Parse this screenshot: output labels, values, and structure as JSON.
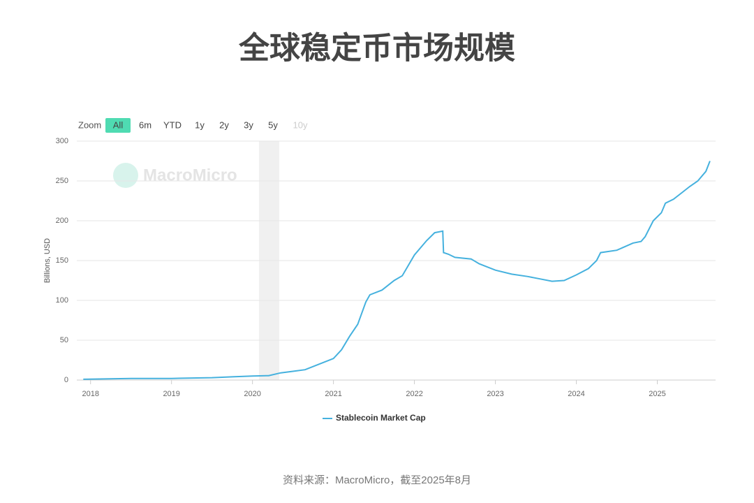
{
  "chart_data": {
    "type": "line",
    "title": "全球稳定币市场规模",
    "y_label": "Billions, USD",
    "source": "资料来源：MacroMicro，截至2025年8月",
    "watermark": "MacroMicro",
    "range_selector": {
      "label": "Zoom",
      "buttons": [
        "All",
        "6m",
        "YTD",
        "1y",
        "2y",
        "3y",
        "5y",
        "10y"
      ],
      "active": 0,
      "disabled": 7
    },
    "x": [
      2017.91,
      2018.5,
      2019.0,
      2019.5,
      2019.75,
      2020.0,
      2020.2,
      2020.35,
      2020.5,
      2020.65,
      2020.8,
      2021.0,
      2021.1,
      2021.2,
      2021.3,
      2021.4,
      2021.45,
      2021.6,
      2021.75,
      2021.85,
      2022.0,
      2022.15,
      2022.25,
      2022.35,
      2022.36,
      2022.42,
      2022.5,
      2022.7,
      2022.8,
      2023.0,
      2023.2,
      2023.4,
      2023.55,
      2023.7,
      2023.85,
      2024.0,
      2024.15,
      2024.25,
      2024.3,
      2024.5,
      2024.7,
      2024.8,
      2024.85,
      2024.95,
      2025.05,
      2025.1,
      2025.2,
      2025.3,
      2025.4,
      2025.5,
      2025.6,
      2025.65
    ],
    "series": [
      {
        "name": "Stablecoin Market Cap",
        "color": "#45b1de",
        "values": [
          1,
          2,
          2,
          3,
          4,
          5,
          5.5,
          9,
          11,
          13,
          19,
          27,
          38,
          55,
          70,
          98,
          107,
          113,
          125,
          131,
          157,
          175,
          185,
          187,
          160,
          158,
          154,
          152,
          146,
          138,
          133,
          130,
          127,
          124,
          125,
          132,
          140,
          150,
          160,
          163,
          172,
          174,
          180,
          200,
          210,
          222,
          227,
          235,
          243,
          250,
          262,
          275
        ]
      }
    ],
    "shaded_x": [
      2020.08,
      2020.33
    ],
    "xlim": [
      2017.83,
      2025.72
    ],
    "xticks": [
      2018,
      2019,
      2020,
      2021,
      2022,
      2023,
      2024,
      2025
    ],
    "ylim": [
      0,
      300
    ],
    "yticks": [
      0,
      50,
      100,
      150,
      200,
      250,
      300
    ],
    "grid": true
  }
}
